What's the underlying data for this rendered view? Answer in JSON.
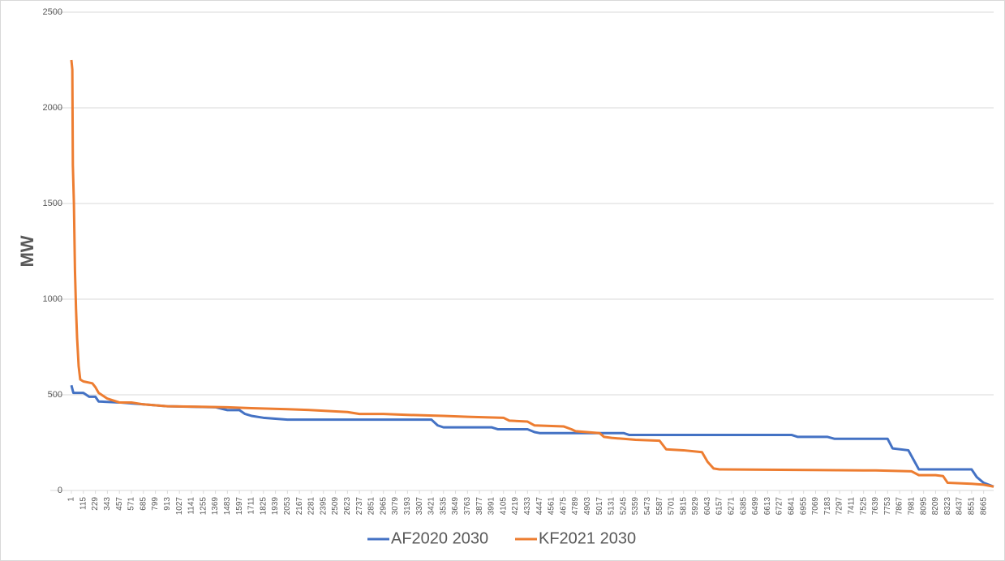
{
  "chart_data": {
    "type": "line",
    "y_label": "MW",
    "xlim": [
      1,
      8760
    ],
    "xticks": [
      1,
      115,
      229,
      343,
      457,
      571,
      685,
      799,
      913,
      1027,
      1141,
      1255,
      1369,
      1483,
      1597,
      1711,
      1825,
      1939,
      2053,
      2167,
      2281,
      2395,
      2509,
      2623,
      2737,
      2851,
      2965,
      3079,
      3193,
      3307,
      3421,
      3535,
      3649,
      3763,
      3877,
      3991,
      4105,
      4219,
      4333,
      4447,
      4561,
      4675,
      4789,
      4903,
      5017,
      5131,
      5245,
      5359,
      5473,
      5587,
      5701,
      5815,
      5929,
      6043,
      6157,
      6271,
      6385,
      6499,
      6613,
      6727,
      6841,
      6955,
      7069,
      7183,
      7297,
      7411,
      7525,
      7639,
      7753,
      7867,
      7981,
      8095,
      8209,
      8323,
      8437,
      8551,
      8665
    ],
    "ylim": [
      0,
      2500
    ],
    "yticks": [
      0,
      500,
      1000,
      1500,
      2000,
      2500
    ],
    "grid": true,
    "legend": "bottom",
    "series": [
      {
        "name": "AF2020 2030",
        "color": "#4472c4",
        "x": [
          1,
          20,
          115,
          170,
          229,
          260,
          457,
          685,
          913,
          1369,
          1483,
          1597,
          1650,
          1711,
          1825,
          2053,
          3421,
          3480,
          3535,
          3991,
          4050,
          4333,
          4400,
          4447,
          5245,
          5300,
          6843,
          6900,
          7183,
          7250,
          7753,
          7800,
          7950,
          8000,
          8050,
          8551,
          8600,
          8665,
          8760
        ],
        "values": [
          550,
          510,
          510,
          490,
          490,
          465,
          460,
          450,
          440,
          435,
          420,
          420,
          400,
          390,
          380,
          370,
          370,
          340,
          330,
          330,
          320,
          320,
          305,
          300,
          300,
          290,
          290,
          280,
          280,
          270,
          270,
          220,
          210,
          160,
          110,
          110,
          70,
          40,
          20
        ]
      },
      {
        "name": "KF2021 2030",
        "color": "#ed7d31",
        "x": [
          1,
          10,
          15,
          25,
          35,
          45,
          55,
          70,
          85,
          115,
          200,
          229,
          260,
          343,
          457,
          571,
          685,
          913,
          1483,
          1711,
          2053,
          2281,
          2623,
          2737,
          2965,
          3193,
          3535,
          3763,
          4105,
          4160,
          4333,
          4400,
          4675,
          4750,
          4789,
          5017,
          5060,
          5131,
          5245,
          5359,
          5587,
          5650,
          5815,
          5990,
          6043,
          6100,
          6157,
          7525,
          7639,
          7981,
          8050,
          8209,
          8280,
          8323,
          8551,
          8665,
          8760
        ],
        "values": [
          2250,
          2200,
          1700,
          1500,
          1150,
          950,
          800,
          650,
          580,
          570,
          560,
          540,
          510,
          480,
          460,
          460,
          450,
          440,
          435,
          430,
          425,
          420,
          410,
          400,
          400,
          395,
          390,
          385,
          380,
          365,
          360,
          340,
          335,
          320,
          310,
          300,
          280,
          275,
          270,
          265,
          260,
          215,
          210,
          200,
          150,
          115,
          110,
          105,
          105,
          100,
          80,
          80,
          75,
          40,
          35,
          30,
          20
        ]
      }
    ]
  }
}
